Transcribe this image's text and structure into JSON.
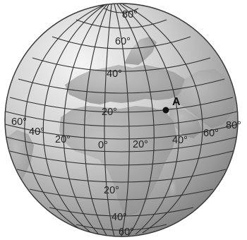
{
  "figure": {
    "point_label": "A",
    "latitude_labels_top": [
      "80°",
      "60°",
      "40°",
      "20°"
    ],
    "latitude_labels_bottom": [
      "20°",
      "40°",
      "60°"
    ],
    "longitude_labels": [
      "60°",
      "40°",
      "20°",
      "0°",
      "20°",
      "40°",
      "60°",
      "80°"
    ]
  },
  "colors": {
    "ocean": "#c9c9c9",
    "land": "#a3a3a3",
    "grid": "#2f2f2f",
    "outline": "#3a3a3a"
  }
}
